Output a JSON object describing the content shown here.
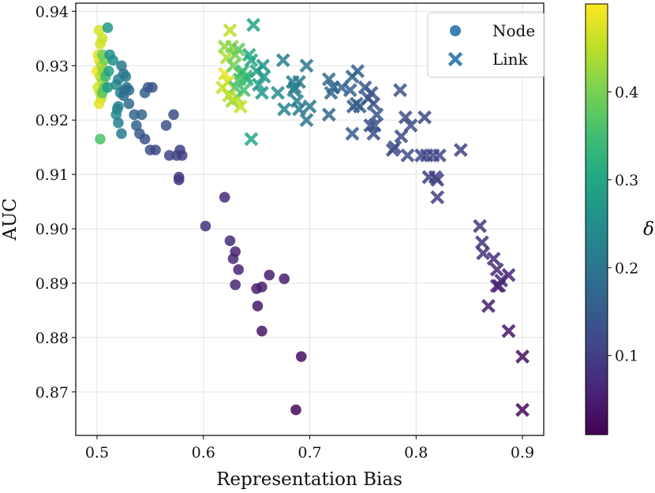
{
  "chart_data": {
    "type": "scatter",
    "xlabel": "Representation Bias",
    "ylabel": "AUC",
    "xlim": [
      0.48,
      0.92
    ],
    "ylim": [
      0.862,
      0.9415
    ],
    "xticks": [
      0.5,
      0.6,
      0.7,
      0.8,
      0.9
    ],
    "xtick_labels": [
      "0.5",
      "0.6",
      "0.7",
      "0.8",
      "0.9"
    ],
    "yticks": [
      0.87,
      0.88,
      0.89,
      0.9,
      0.91,
      0.92,
      0.93,
      0.94
    ],
    "ytick_labels": [
      "0.87",
      "0.88",
      "0.89",
      "0.90",
      "0.91",
      "0.92",
      "0.93",
      "0.94"
    ],
    "grid": true,
    "legend_position": "top-right",
    "colorbar": {
      "label": "δ",
      "colormap": "viridis",
      "range": [
        0.01,
        0.5
      ],
      "ticks": [
        0.1,
        0.2,
        0.3,
        0.4
      ],
      "tick_labels": [
        "0.1",
        "0.2",
        "0.3",
        "0.4"
      ]
    },
    "series": [
      {
        "name": "Node",
        "marker": "circle",
        "points": [
          [
            0.502,
            0.9365,
            0.47
          ],
          [
            0.503,
            0.934,
            0.47
          ],
          [
            0.505,
            0.935,
            0.46
          ],
          [
            0.501,
            0.932,
            0.48
          ],
          [
            0.5,
            0.929,
            0.49
          ],
          [
            0.502,
            0.931,
            0.48
          ],
          [
            0.504,
            0.93,
            0.44
          ],
          [
            0.503,
            0.928,
            0.45
          ],
          [
            0.505,
            0.927,
            0.43
          ],
          [
            0.501,
            0.926,
            0.47
          ],
          [
            0.503,
            0.925,
            0.46
          ],
          [
            0.504,
            0.924,
            0.45
          ],
          [
            0.502,
            0.923,
            0.48
          ],
          [
            0.506,
            0.929,
            0.42
          ],
          [
            0.507,
            0.931,
            0.4
          ],
          [
            0.505,
            0.932,
            0.39
          ],
          [
            0.507,
            0.926,
            0.38
          ],
          [
            0.505,
            0.925,
            0.37
          ],
          [
            0.508,
            0.928,
            0.34
          ],
          [
            0.503,
            0.9165,
            0.36
          ],
          [
            0.51,
            0.937,
            0.27
          ],
          [
            0.512,
            0.932,
            0.26
          ],
          [
            0.515,
            0.931,
            0.25
          ],
          [
            0.51,
            0.926,
            0.27
          ],
          [
            0.511,
            0.929,
            0.28
          ],
          [
            0.518,
            0.9265,
            0.24
          ],
          [
            0.52,
            0.9275,
            0.22
          ],
          [
            0.522,
            0.925,
            0.23
          ],
          [
            0.523,
            0.93,
            0.21
          ],
          [
            0.525,
            0.9285,
            0.2
          ],
          [
            0.527,
            0.928,
            0.21
          ],
          [
            0.528,
            0.926,
            0.2
          ],
          [
            0.526,
            0.9255,
            0.19
          ],
          [
            0.53,
            0.9255,
            0.18
          ],
          [
            0.525,
            0.9245,
            0.19
          ],
          [
            0.519,
            0.922,
            0.24
          ],
          [
            0.52,
            0.9225,
            0.23
          ],
          [
            0.518,
            0.921,
            0.24
          ],
          [
            0.52,
            0.9195,
            0.22
          ],
          [
            0.523,
            0.9175,
            0.21
          ],
          [
            0.53,
            0.923,
            0.18
          ],
          [
            0.535,
            0.921,
            0.17
          ],
          [
            0.537,
            0.919,
            0.16
          ],
          [
            0.54,
            0.9175,
            0.15
          ],
          [
            0.542,
            0.921,
            0.17
          ],
          [
            0.545,
            0.925,
            0.16
          ],
          [
            0.548,
            0.926,
            0.15
          ],
          [
            0.552,
            0.926,
            0.14
          ],
          [
            0.545,
            0.9165,
            0.13
          ],
          [
            0.55,
            0.9145,
            0.12
          ],
          [
            0.555,
            0.9145,
            0.12
          ],
          [
            0.565,
            0.919,
            0.13
          ],
          [
            0.568,
            0.9135,
            0.11
          ],
          [
            0.572,
            0.921,
            0.12
          ],
          [
            0.575,
            0.9135,
            0.11
          ],
          [
            0.578,
            0.9145,
            0.1
          ],
          [
            0.58,
            0.9135,
            0.1
          ],
          [
            0.577,
            0.9095,
            0.09
          ],
          [
            0.577,
            0.909,
            0.09
          ],
          [
            0.602,
            0.9005,
            0.08
          ],
          [
            0.62,
            0.9058,
            0.07
          ],
          [
            0.625,
            0.8978,
            0.07
          ],
          [
            0.628,
            0.8945,
            0.07
          ],
          [
            0.63,
            0.8958,
            0.06
          ],
          [
            0.633,
            0.8925,
            0.06
          ],
          [
            0.63,
            0.8897,
            0.06
          ],
          [
            0.65,
            0.889,
            0.05
          ],
          [
            0.655,
            0.8893,
            0.05
          ],
          [
            0.662,
            0.8915,
            0.05
          ],
          [
            0.676,
            0.8908,
            0.05
          ],
          [
            0.651,
            0.8858,
            0.04
          ],
          [
            0.655,
            0.8812,
            0.04
          ],
          [
            0.692,
            0.8765,
            0.03
          ],
          [
            0.687,
            0.8667,
            0.02
          ]
        ]
      },
      {
        "name": "Link",
        "marker": "x",
        "points": [
          [
            0.62,
            0.9285,
            0.48
          ],
          [
            0.623,
            0.927,
            0.47
          ],
          [
            0.618,
            0.926,
            0.46
          ],
          [
            0.625,
            0.9365,
            0.45
          ],
          [
            0.622,
            0.9315,
            0.44
          ],
          [
            0.62,
            0.9335,
            0.42
          ],
          [
            0.627,
            0.9335,
            0.41
          ],
          [
            0.63,
            0.932,
            0.4
          ],
          [
            0.628,
            0.93,
            0.39
          ],
          [
            0.633,
            0.933,
            0.38
          ],
          [
            0.635,
            0.9285,
            0.37
          ],
          [
            0.63,
            0.926,
            0.36
          ],
          [
            0.632,
            0.924,
            0.44
          ],
          [
            0.635,
            0.9225,
            0.46
          ],
          [
            0.627,
            0.9235,
            0.43
          ],
          [
            0.624,
            0.9245,
            0.45
          ],
          [
            0.637,
            0.929,
            0.34
          ],
          [
            0.64,
            0.928,
            0.33
          ],
          [
            0.643,
            0.932,
            0.31
          ],
          [
            0.645,
            0.931,
            0.3
          ],
          [
            0.641,
            0.9275,
            0.32
          ],
          [
            0.647,
            0.9375,
            0.29
          ],
          [
            0.65,
            0.929,
            0.29
          ],
          [
            0.652,
            0.9265,
            0.28
          ],
          [
            0.655,
            0.925,
            0.27
          ],
          [
            0.645,
            0.9165,
            0.3
          ],
          [
            0.638,
            0.9255,
            0.35
          ],
          [
            0.634,
            0.9275,
            0.36
          ],
          [
            0.656,
            0.93,
            0.26
          ],
          [
            0.657,
            0.928,
            0.27
          ],
          [
            0.67,
            0.925,
            0.24
          ],
          [
            0.675,
            0.931,
            0.22
          ],
          [
            0.676,
            0.922,
            0.23
          ],
          [
            0.684,
            0.927,
            0.22
          ],
          [
            0.686,
            0.926,
            0.21
          ],
          [
            0.69,
            0.927,
            0.21
          ],
          [
            0.685,
            0.9255,
            0.22
          ],
          [
            0.688,
            0.9235,
            0.22
          ],
          [
            0.69,
            0.922,
            0.21
          ],
          [
            0.697,
            0.92,
            0.2
          ],
          [
            0.7,
            0.9225,
            0.2
          ],
          [
            0.697,
            0.93,
            0.2
          ],
          [
            0.718,
            0.9275,
            0.18
          ],
          [
            0.72,
            0.925,
            0.18
          ],
          [
            0.722,
            0.926,
            0.17
          ],
          [
            0.718,
            0.921,
            0.17
          ],
          [
            0.73,
            0.926,
            0.17
          ],
          [
            0.738,
            0.9255,
            0.16
          ],
          [
            0.74,
            0.928,
            0.16
          ],
          [
            0.745,
            0.929,
            0.16
          ],
          [
            0.741,
            0.9225,
            0.15
          ],
          [
            0.744,
            0.923,
            0.15
          ],
          [
            0.747,
            0.9225,
            0.15
          ],
          [
            0.74,
            0.9175,
            0.15
          ],
          [
            0.752,
            0.926,
            0.14
          ],
          [
            0.758,
            0.925,
            0.14
          ],
          [
            0.755,
            0.924,
            0.14
          ],
          [
            0.76,
            0.923,
            0.13
          ],
          [
            0.763,
            0.921,
            0.14
          ],
          [
            0.761,
            0.919,
            0.13
          ],
          [
            0.757,
            0.919,
            0.13
          ],
          [
            0.76,
            0.9175,
            0.13
          ],
          [
            0.785,
            0.9255,
            0.13
          ],
          [
            0.79,
            0.9205,
            0.12
          ],
          [
            0.795,
            0.919,
            0.12
          ],
          [
            0.78,
            0.915,
            0.12
          ],
          [
            0.778,
            0.9145,
            0.12
          ],
          [
            0.786,
            0.917,
            0.12
          ],
          [
            0.792,
            0.9135,
            0.12
          ],
          [
            0.805,
            0.9135,
            0.11
          ],
          [
            0.81,
            0.9135,
            0.11
          ],
          [
            0.816,
            0.9135,
            0.11
          ],
          [
            0.822,
            0.9135,
            0.11
          ],
          [
            0.808,
            0.9205,
            0.11
          ],
          [
            0.812,
            0.9095,
            0.1
          ],
          [
            0.818,
            0.9095,
            0.1
          ],
          [
            0.82,
            0.909,
            0.1
          ],
          [
            0.82,
            0.9058,
            0.1
          ],
          [
            0.842,
            0.9145,
            0.1
          ],
          [
            0.86,
            0.9005,
            0.08
          ],
          [
            0.862,
            0.8975,
            0.08
          ],
          [
            0.863,
            0.8955,
            0.08
          ],
          [
            0.873,
            0.8945,
            0.07
          ],
          [
            0.876,
            0.8925,
            0.07
          ],
          [
            0.88,
            0.8905,
            0.07
          ],
          [
            0.878,
            0.8895,
            0.06
          ],
          [
            0.876,
            0.8895,
            0.06
          ],
          [
            0.887,
            0.8915,
            0.06
          ],
          [
            0.868,
            0.8858,
            0.05
          ],
          [
            0.887,
            0.8812,
            0.04
          ],
          [
            0.9,
            0.8765,
            0.03
          ],
          [
            0.9,
            0.8667,
            0.02
          ]
        ]
      }
    ]
  }
}
